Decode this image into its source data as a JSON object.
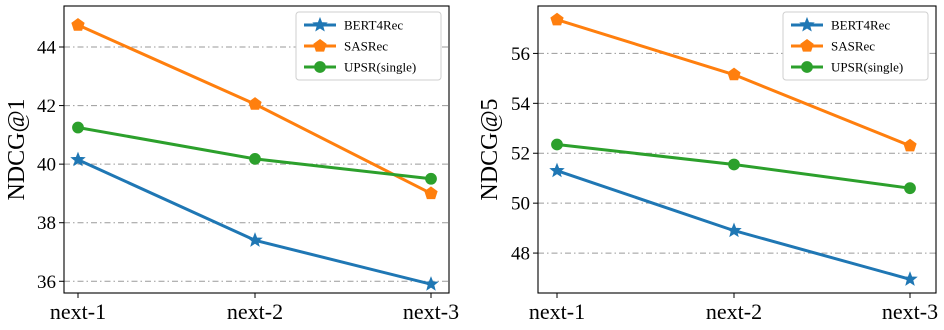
{
  "chart_data": [
    {
      "type": "line",
      "categories": [
        "next-1",
        "next-2",
        "next-3"
      ],
      "ylabel": "NDCG@1",
      "ylim": [
        35.6,
        45.4
      ],
      "yticks": [
        36,
        38,
        40,
        42,
        44
      ],
      "grid": "horizontal-dashdot",
      "legend_position": "top-right",
      "series": [
        {
          "name": "BERT4Rec",
          "color": "#1f77b4",
          "marker": "star",
          "values": [
            40.15,
            37.4,
            35.9
          ]
        },
        {
          "name": "SASRec",
          "color": "#ff7f0e",
          "marker": "pentagon",
          "values": [
            44.75,
            42.05,
            39.0
          ]
        },
        {
          "name": "UPSR(single)",
          "color": "#2ca02c",
          "marker": "circle",
          "values": [
            41.25,
            40.18,
            39.5
          ]
        }
      ]
    },
    {
      "type": "line",
      "categories": [
        "next-1",
        "next-2",
        "next-3"
      ],
      "ylabel": "NDCG@5",
      "ylim": [
        46.4,
        57.9
      ],
      "yticks": [
        48,
        50,
        52,
        54,
        56
      ],
      "grid": "horizontal-dashdot",
      "legend_position": "top-right",
      "series": [
        {
          "name": "BERT4Rec",
          "color": "#1f77b4",
          "marker": "star",
          "values": [
            51.3,
            48.9,
            46.95
          ]
        },
        {
          "name": "SASRec",
          "color": "#ff7f0e",
          "marker": "pentagon",
          "values": [
            57.35,
            55.15,
            52.3
          ]
        },
        {
          "name": "UPSR(single)",
          "color": "#2ca02c",
          "marker": "circle",
          "values": [
            52.35,
            51.55,
            50.6
          ]
        }
      ]
    }
  ]
}
